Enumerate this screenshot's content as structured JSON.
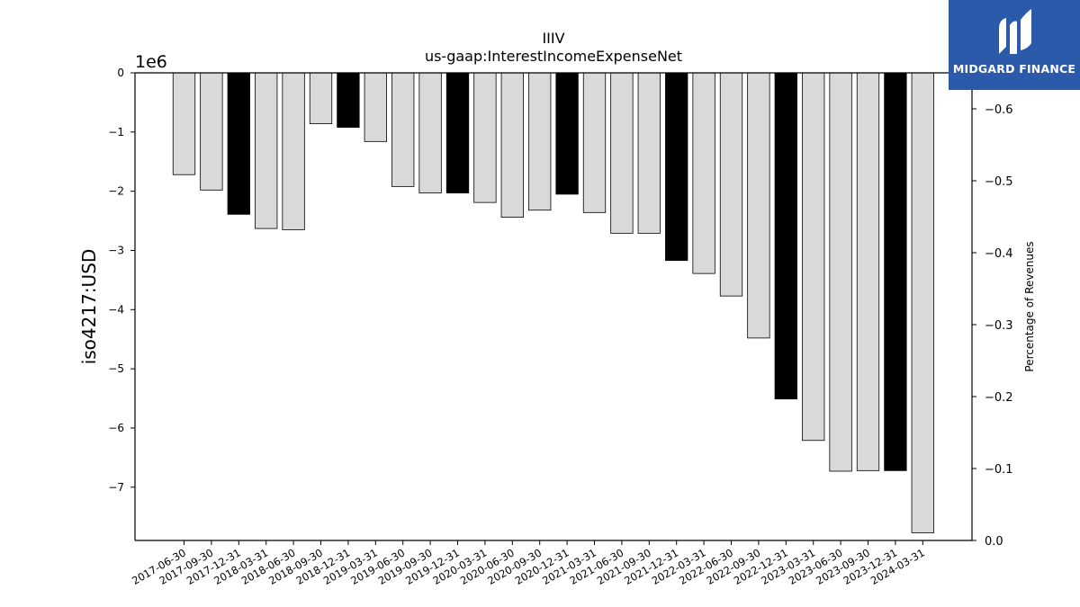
{
  "chart_data": {
    "type": "bar",
    "title": "IIIV",
    "subtitle": "us-gaap:InterestIncomeExpenseNet",
    "ylabel": "iso4217:USD",
    "y_multiplier": "1e6",
    "y2label": "Percentage of Revenues",
    "ylim": [
      -7.9,
      0
    ],
    "y2lim": [
      0.0,
      -0.65
    ],
    "yticks": [
      "0",
      "−1",
      "−2",
      "−3",
      "−4",
      "−5",
      "−6",
      "−7"
    ],
    "y2ticks": [
      "0.0",
      "−0.1",
      "−0.2",
      "−0.3",
      "−0.4",
      "−0.5",
      "−0.6"
    ],
    "categories": [
      "2017-06-30",
      "2017-09-30",
      "2017-12-31",
      "2018-03-31",
      "2018-06-30",
      "2018-09-30",
      "2018-12-31",
      "2019-03-31",
      "2019-06-30",
      "2019-09-30",
      "2019-12-31",
      "2020-03-31",
      "2020-06-30",
      "2020-09-30",
      "2020-12-31",
      "2021-03-31",
      "2021-06-30",
      "2021-09-30",
      "2021-12-31",
      "2022-03-31",
      "2022-06-30",
      "2022-09-30",
      "2022-12-31",
      "2023-03-31",
      "2023-06-30",
      "2023-09-30",
      "2023-12-31",
      "2024-03-31"
    ],
    "values": [
      -1.72,
      -1.98,
      -2.39,
      -2.63,
      -2.65,
      -0.86,
      -0.92,
      -1.16,
      -1.92,
      -2.03,
      -2.03,
      -2.19,
      -2.44,
      -2.32,
      -2.05,
      -2.36,
      -2.71,
      -2.71,
      -3.17,
      -3.39,
      -3.77,
      -4.48,
      -5.51,
      -6.21,
      -6.73,
      -6.72,
      -6.72,
      -7.77
    ],
    "highlight": [
      false,
      false,
      true,
      false,
      false,
      false,
      true,
      false,
      false,
      false,
      true,
      false,
      false,
      false,
      true,
      false,
      false,
      false,
      true,
      false,
      false,
      false,
      true,
      false,
      false,
      false,
      true,
      false
    ],
    "colors": {
      "normal": "#d9d9d9",
      "highlight": "#000000",
      "edge": "#000000"
    },
    "grid": false
  },
  "logo": {
    "text": "MIDGARD FINANCE",
    "background": "#2b5aab"
  }
}
